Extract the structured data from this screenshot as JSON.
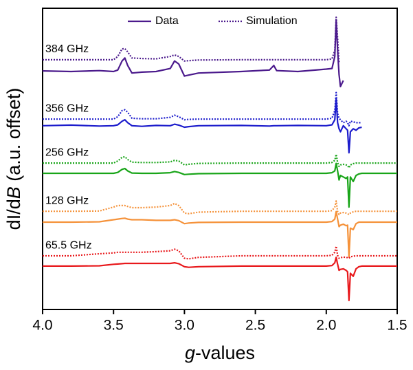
{
  "chart_data": {
    "type": "line",
    "xlabel": [
      "g",
      "-values"
    ],
    "ylabel": [
      "dI/d",
      "B",
      " (a.u. offset)"
    ],
    "xlim": [
      4.0,
      1.5
    ],
    "xticks": [
      {
        "value": 4,
        "label": "4.0"
      },
      3.5,
      {
        "value": 3,
        "label": "3.0"
      },
      2.5,
      {
        "value": 2,
        "label": "2.0"
      },
      1.5
    ],
    "ylim": [
      0,
      100
    ],
    "legend": [
      {
        "label": "Data",
        "style": "solid"
      },
      {
        "label": "Simulation",
        "style": "dotted"
      }
    ],
    "x": [
      4.0,
      3.8,
      3.6,
      3.5,
      3.47,
      3.44,
      3.42,
      3.4,
      3.37,
      3.3,
      3.2,
      3.1,
      3.07,
      3.04,
      3.0,
      2.97,
      2.9,
      2.6,
      2.4,
      2.37,
      2.35,
      2.2,
      2.0,
      1.96,
      1.94,
      1.93,
      1.92,
      1.91,
      1.9,
      1.88,
      1.86,
      1.85,
      1.84,
      1.83,
      1.81,
      1.79,
      1.77,
      1.75,
      1.7,
      1.6,
      1.5
    ],
    "series": [
      {
        "label": "384 GHz",
        "color": "#4b1a8c",
        "data": [
          79.2,
          79.0,
          79.3,
          79.0,
          79.5,
          82.5,
          83.5,
          81.0,
          78.5,
          78.8,
          79.0,
          80.0,
          82.5,
          81.5,
          77.5,
          77.8,
          78.5,
          79.0,
          79.5,
          81.0,
          79.3,
          79.0,
          79.8,
          80.0,
          84.0,
          96.0,
          86.0,
          78.0,
          74.0,
          76.0,
          null,
          null,
          null,
          null,
          null,
          null,
          null,
          null,
          null,
          null,
          null
        ],
        "simulation": [
          82.9,
          82.9,
          82.9,
          82.9,
          84.0,
          86.5,
          86.6,
          85.5,
          83.5,
          83.3,
          83.2,
          84.0,
          84.5,
          84.0,
          82.5,
          82.6,
          82.8,
          82.9,
          82.9,
          82.9,
          82.9,
          82.9,
          82.9,
          83.2,
          86.0,
          97.0,
          90.0,
          82.0,
          null,
          null,
          null,
          null,
          null,
          null,
          null,
          null,
          null,
          null,
          null,
          null,
          null
        ]
      },
      {
        "label": "356 GHz",
        "color": "#1c1ccc",
        "data": [
          61.0,
          61.2,
          60.9,
          61.0,
          61.3,
          62.5,
          63.0,
          62.0,
          61.0,
          60.8,
          61.1,
          61.0,
          61.5,
          61.2,
          60.5,
          60.7,
          61.0,
          61.1,
          60.9,
          61.0,
          61.0,
          61.1,
          61.0,
          61.3,
          63.0,
          70.0,
          62.0,
          60.0,
          59.0,
          61.0,
          60.0,
          59.5,
          52.0,
          59.0,
          60.0,
          59.5,
          60.3,
          60.5,
          null,
          null,
          null
        ],
        "simulation": [
          63.2,
          63.2,
          63.2,
          63.2,
          64.0,
          66.0,
          66.3,
          65.5,
          63.5,
          63.3,
          63.3,
          63.8,
          64.5,
          64.0,
          63.0,
          63.1,
          63.2,
          63.2,
          63.2,
          63.2,
          63.2,
          63.2,
          63.2,
          63.5,
          66.0,
          72.0,
          65.0,
          63.5,
          63.0,
          62.0,
          62.5,
          62.0,
          61.0,
          62.5,
          62.3,
          62.0,
          62.0,
          62.0,
          null,
          null,
          null
        ]
      },
      {
        "label": "256 GHz",
        "color": "#19a519",
        "data": [
          45.2,
          45.2,
          45.2,
          45.2,
          45.5,
          46.5,
          46.8,
          46.0,
          45.3,
          45.2,
          45.2,
          45.4,
          45.8,
          45.5,
          44.8,
          44.9,
          45.1,
          45.2,
          45.2,
          45.2,
          45.2,
          45.2,
          45.2,
          45.4,
          46.0,
          48.5,
          46.0,
          43.0,
          44.5,
          44.0,
          43.5,
          44.0,
          34.0,
          44.0,
          42.5,
          44.5,
          45.0,
          45.2,
          45.2,
          45.2,
          45.2
        ],
        "simulation": [
          48.6,
          48.6,
          48.6,
          48.6,
          49.3,
          50.5,
          50.7,
          49.8,
          48.9,
          48.8,
          48.8,
          49.0,
          49.5,
          49.3,
          48.0,
          48.2,
          48.5,
          48.6,
          48.6,
          48.6,
          48.6,
          48.6,
          48.6,
          48.8,
          49.5,
          51.5,
          48.8,
          47.5,
          48.0,
          48.2,
          48.0,
          47.8,
          47.0,
          48.0,
          48.4,
          48.6,
          48.6,
          48.6,
          48.6,
          48.6,
          48.6
        ]
      },
      {
        "label": "128 GHz",
        "color": "#f5923a",
        "data": [
          29.0,
          29.0,
          29.1,
          29.8,
          30.0,
          30.2,
          30.3,
          30.0,
          29.8,
          29.8,
          29.6,
          29.6,
          29.8,
          29.5,
          28.5,
          28.7,
          28.9,
          29.0,
          29.0,
          29.0,
          29.0,
          29.0,
          29.0,
          29.2,
          30.0,
          32.5,
          30.0,
          27.5,
          28.0,
          28.3,
          27.8,
          28.0,
          17.5,
          27.0,
          26.5,
          28.5,
          29.0,
          29.0,
          29.0,
          29.0,
          29.0
        ],
        "simulation": [
          32.6,
          32.6,
          32.7,
          34.0,
          34.5,
          34.5,
          34.5,
          34.2,
          33.8,
          33.8,
          34.0,
          34.5,
          35.2,
          34.5,
          32.0,
          31.8,
          32.3,
          32.6,
          32.6,
          32.6,
          32.6,
          32.6,
          32.6,
          32.8,
          34.0,
          36.0,
          32.5,
          31.5,
          32.0,
          32.2,
          32.0,
          31.8,
          31.5,
          32.0,
          32.4,
          32.6,
          32.6,
          32.6,
          32.6,
          32.6,
          32.6
        ]
      },
      {
        "label": "65.5 GHz",
        "color": "#e8191c",
        "data": [
          14.4,
          14.4,
          14.5,
          15.0,
          15.1,
          15.2,
          15.3,
          15.3,
          15.3,
          15.3,
          15.3,
          15.3,
          15.5,
          15.2,
          14.2,
          14.0,
          14.2,
          14.4,
          14.4,
          14.4,
          14.4,
          14.4,
          14.4,
          14.6,
          15.5,
          17.3,
          15.0,
          13.0,
          13.3,
          13.5,
          13.0,
          12.5,
          3.0,
          12.0,
          11.0,
          13.5,
          14.2,
          14.4,
          14.4,
          14.4,
          14.4
        ],
        "simulation": [
          17.8,
          17.8,
          18.5,
          18.8,
          19.0,
          19.0,
          19.0,
          19.0,
          19.0,
          19.0,
          19.2,
          19.5,
          20.0,
          19.5,
          17.0,
          16.8,
          17.3,
          17.8,
          17.8,
          17.8,
          17.8,
          17.8,
          17.8,
          18.0,
          19.0,
          21.0,
          18.0,
          17.0,
          17.2,
          17.4,
          17.3,
          17.2,
          17.0,
          17.5,
          17.7,
          17.8,
          17.8,
          17.8,
          17.8,
          17.8,
          17.8
        ]
      }
    ]
  }
}
